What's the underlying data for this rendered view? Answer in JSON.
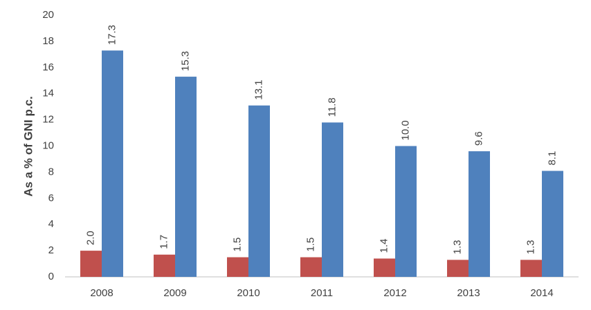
{
  "chart_data": {
    "type": "bar",
    "y_label": "As a % of GNI p.c.",
    "categories": [
      "2008",
      "2009",
      "2010",
      "2011",
      "2012",
      "2013",
      "2014"
    ],
    "series": [
      {
        "color": "#c0504d",
        "values": [
          2.0,
          1.7,
          1.5,
          1.5,
          1.4,
          1.3,
          1.3
        ],
        "value_labels": [
          "2.0",
          "1.7",
          "1.5",
          "1.5",
          "1.4",
          "1.3",
          "1.3"
        ]
      },
      {
        "color": "#4f81bd",
        "values": [
          17.3,
          15.3,
          13.1,
          11.8,
          10.0,
          9.6,
          8.1
        ],
        "value_labels": [
          "17.3",
          "15.3",
          "13.1",
          "11.8",
          "10.0",
          "9.6",
          "8.1"
        ]
      }
    ],
    "ylim": [
      0,
      20
    ],
    "yticks": [
      0,
      2,
      4,
      6,
      8,
      10,
      12,
      14,
      16,
      18,
      20
    ],
    "grid": false
  }
}
